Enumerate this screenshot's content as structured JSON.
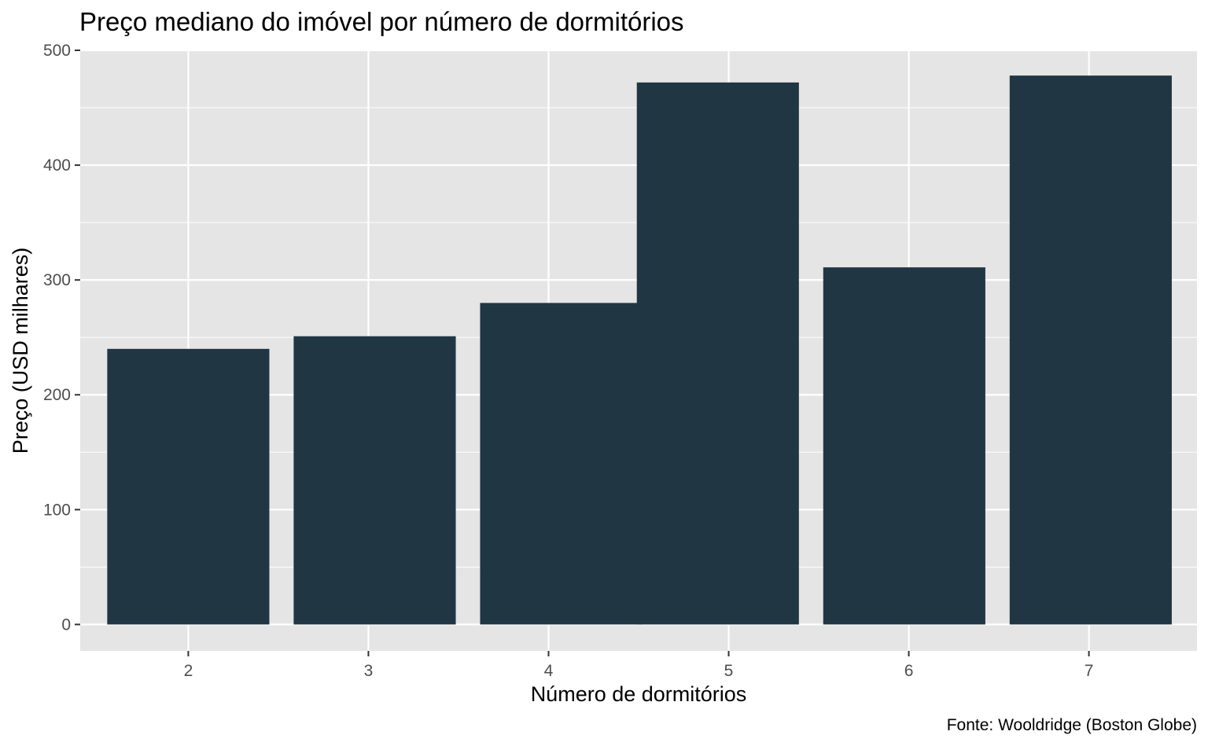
{
  "chart_data": {
    "type": "bar",
    "title": "Preço mediano do imóvel por número de dormitórios",
    "xlabel": "Número de dormitórios",
    "ylabel": "Preço (USD milhares)",
    "caption": "Fonte: Wooldridge (Boston Globe)",
    "categories": [
      "2",
      "3",
      "4",
      "5",
      "6",
      "7"
    ],
    "x": [
      2,
      3,
      4,
      5,
      6,
      7
    ],
    "bar_width": 0.9,
    "series": [
      {
        "values": [
          240,
          251,
          280,
          472,
          311,
          478
        ],
        "x_ranges": [
          [
            1.55,
            2.45
          ],
          [
            2.585,
            3.485
          ],
          [
            3.62,
            4.52
          ],
          [
            4.49,
            5.39
          ],
          [
            5.525,
            6.425
          ],
          [
            6.56,
            7.46
          ]
        ]
      }
    ],
    "xlim": [
      1.4,
      7.6
    ],
    "ylim": [
      -23,
      500
    ],
    "yticks": [
      0,
      100,
      200,
      300,
      400,
      500
    ],
    "xticks": [
      2,
      3,
      4,
      5,
      6,
      7
    ],
    "grid": true,
    "legend": "none",
    "colors": {
      "bar": "#203643",
      "panel_background": "#e5e5e5",
      "grid": "#ffffff",
      "tick_text": "#4d4d4d"
    }
  }
}
